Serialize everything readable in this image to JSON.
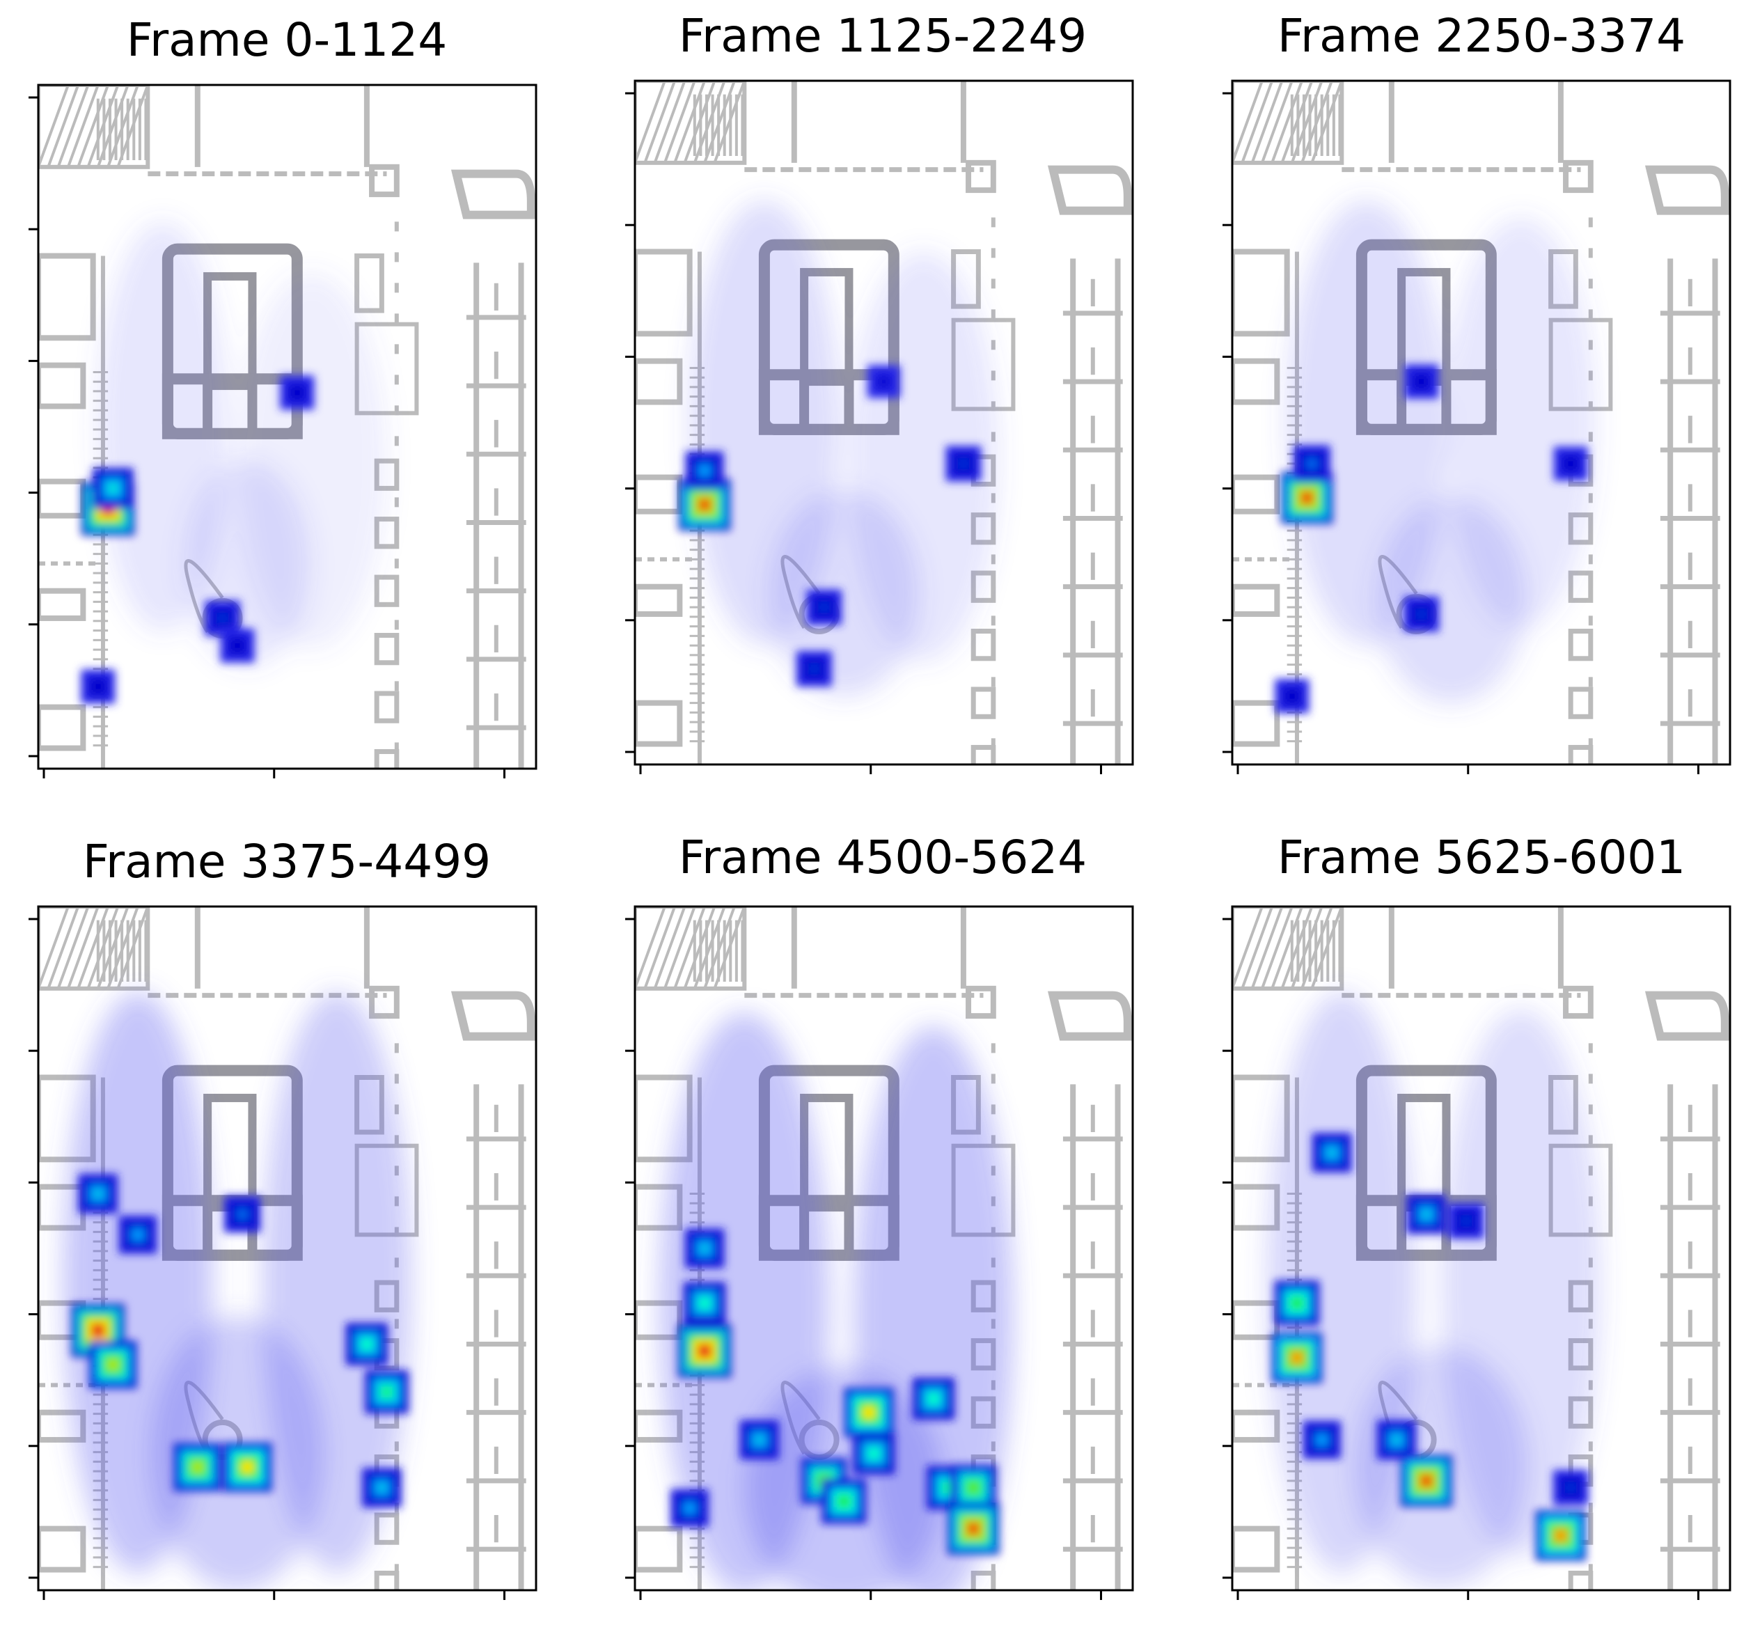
{
  "figure": {
    "background": "#ffffff"
  },
  "chart_data": [
    {
      "type": "heatmap",
      "title": "Frame 0-1124",
      "frame_range": [
        0,
        1124
      ],
      "xlabel": "",
      "ylabel": "",
      "x_tick_count": 3,
      "y_tick_count": 6,
      "background": "floor plan",
      "hotspots": [
        {
          "x": 0.14,
          "y": 0.62,
          "intensity": 1.0
        },
        {
          "x": 0.15,
          "y": 0.59,
          "intensity": 0.55
        },
        {
          "x": 0.37,
          "y": 0.78,
          "intensity": 0.35
        },
        {
          "x": 0.4,
          "y": 0.82,
          "intensity": 0.3
        },
        {
          "x": 0.52,
          "y": 0.45,
          "intensity": 0.3
        },
        {
          "x": 0.12,
          "y": 0.88,
          "intensity": 0.3
        }
      ],
      "diffuse": [
        {
          "x": 0.25,
          "y": 0.5,
          "w": 0.26,
          "h": 0.6,
          "intensity": 0.15
        },
        {
          "x": 0.55,
          "y": 0.55,
          "w": 0.3,
          "h": 0.55,
          "intensity": 0.1
        },
        {
          "x": 0.42,
          "y": 0.7,
          "w": 0.25,
          "h": 0.3,
          "intensity": 0.15
        }
      ]
    },
    {
      "type": "heatmap",
      "title": "Frame 1125-2249",
      "frame_range": [
        1125,
        2249
      ],
      "xlabel": "",
      "ylabel": "",
      "x_tick_count": 3,
      "y_tick_count": 6,
      "background": "floor plan",
      "hotspots": [
        {
          "x": 0.14,
          "y": 0.62,
          "intensity": 0.95
        },
        {
          "x": 0.14,
          "y": 0.57,
          "intensity": 0.45
        },
        {
          "x": 0.38,
          "y": 0.77,
          "intensity": 0.35
        },
        {
          "x": 0.36,
          "y": 0.86,
          "intensity": 0.35
        },
        {
          "x": 0.66,
          "y": 0.56,
          "intensity": 0.35
        },
        {
          "x": 0.5,
          "y": 0.44,
          "intensity": 0.25
        }
      ],
      "diffuse": [
        {
          "x": 0.26,
          "y": 0.5,
          "w": 0.3,
          "h": 0.65,
          "intensity": 0.2
        },
        {
          "x": 0.58,
          "y": 0.55,
          "w": 0.3,
          "h": 0.6,
          "intensity": 0.15
        },
        {
          "x": 0.42,
          "y": 0.75,
          "w": 0.3,
          "h": 0.3,
          "intensity": 0.2
        }
      ]
    },
    {
      "type": "heatmap",
      "title": "Frame 2250-3374",
      "frame_range": [
        2250,
        3374
      ],
      "xlabel": "",
      "ylabel": "",
      "x_tick_count": 3,
      "y_tick_count": 6,
      "background": "floor plan",
      "hotspots": [
        {
          "x": 0.15,
          "y": 0.61,
          "intensity": 0.95
        },
        {
          "x": 0.16,
          "y": 0.56,
          "intensity": 0.4
        },
        {
          "x": 0.38,
          "y": 0.78,
          "intensity": 0.35
        },
        {
          "x": 0.12,
          "y": 0.9,
          "intensity": 0.3
        },
        {
          "x": 0.38,
          "y": 0.44,
          "intensity": 0.3
        },
        {
          "x": 0.68,
          "y": 0.56,
          "intensity": 0.3
        }
      ],
      "diffuse": [
        {
          "x": 0.27,
          "y": 0.5,
          "w": 0.32,
          "h": 0.65,
          "intensity": 0.2
        },
        {
          "x": 0.58,
          "y": 0.5,
          "w": 0.3,
          "h": 0.6,
          "intensity": 0.15
        },
        {
          "x": 0.44,
          "y": 0.76,
          "w": 0.3,
          "h": 0.3,
          "intensity": 0.2
        }
      ]
    },
    {
      "type": "heatmap",
      "title": "Frame 3375-4499",
      "frame_range": [
        3375,
        4499
      ],
      "xlabel": "",
      "ylabel": "",
      "x_tick_count": 3,
      "y_tick_count": 6,
      "background": "floor plan",
      "hotspots": [
        {
          "x": 0.12,
          "y": 0.62,
          "intensity": 1.0
        },
        {
          "x": 0.15,
          "y": 0.67,
          "intensity": 0.8
        },
        {
          "x": 0.12,
          "y": 0.42,
          "intensity": 0.5
        },
        {
          "x": 0.32,
          "y": 0.82,
          "intensity": 0.8
        },
        {
          "x": 0.42,
          "y": 0.82,
          "intensity": 0.85
        },
        {
          "x": 0.66,
          "y": 0.64,
          "intensity": 0.6
        },
        {
          "x": 0.7,
          "y": 0.71,
          "intensity": 0.65
        },
        {
          "x": 0.69,
          "y": 0.85,
          "intensity": 0.5
        },
        {
          "x": 0.41,
          "y": 0.45,
          "intensity": 0.4
        },
        {
          "x": 0.2,
          "y": 0.48,
          "intensity": 0.45
        }
      ],
      "diffuse": [
        {
          "x": 0.2,
          "y": 0.55,
          "w": 0.3,
          "h": 0.85,
          "intensity": 0.35
        },
        {
          "x": 0.6,
          "y": 0.55,
          "w": 0.3,
          "h": 0.85,
          "intensity": 0.3
        },
        {
          "x": 0.4,
          "y": 0.8,
          "w": 0.35,
          "h": 0.4,
          "intensity": 0.3
        }
      ]
    },
    {
      "type": "heatmap",
      "title": "Frame 4500-5624",
      "frame_range": [
        4500,
        5624
      ],
      "xlabel": "",
      "ylabel": "",
      "x_tick_count": 3,
      "y_tick_count": 6,
      "background": "floor plan",
      "hotspots": [
        {
          "x": 0.14,
          "y": 0.65,
          "intensity": 1.0
        },
        {
          "x": 0.14,
          "y": 0.58,
          "intensity": 0.6
        },
        {
          "x": 0.14,
          "y": 0.5,
          "intensity": 0.5
        },
        {
          "x": 0.38,
          "y": 0.84,
          "intensity": 0.75
        },
        {
          "x": 0.42,
          "y": 0.87,
          "intensity": 0.7
        },
        {
          "x": 0.48,
          "y": 0.8,
          "intensity": 0.6
        },
        {
          "x": 0.47,
          "y": 0.74,
          "intensity": 0.85
        },
        {
          "x": 0.6,
          "y": 0.72,
          "intensity": 0.6
        },
        {
          "x": 0.63,
          "y": 0.85,
          "intensity": 0.65
        },
        {
          "x": 0.68,
          "y": 0.85,
          "intensity": 0.75
        },
        {
          "x": 0.68,
          "y": 0.91,
          "intensity": 0.95
        },
        {
          "x": 0.25,
          "y": 0.78,
          "intensity": 0.5
        },
        {
          "x": 0.11,
          "y": 0.88,
          "intensity": 0.45
        }
      ],
      "diffuse": [
        {
          "x": 0.22,
          "y": 0.58,
          "w": 0.34,
          "h": 0.85,
          "intensity": 0.35
        },
        {
          "x": 0.6,
          "y": 0.6,
          "w": 0.32,
          "h": 0.85,
          "intensity": 0.35
        },
        {
          "x": 0.42,
          "y": 0.85,
          "w": 0.4,
          "h": 0.35,
          "intensity": 0.35
        }
      ]
    },
    {
      "type": "heatmap",
      "title": "Frame 5625-6001",
      "frame_range": [
        5625,
        6001
      ],
      "xlabel": "",
      "ylabel": "",
      "x_tick_count": 3,
      "y_tick_count": 6,
      "background": "floor plan",
      "hotspots": [
        {
          "x": 0.13,
          "y": 0.58,
          "intensity": 0.7
        },
        {
          "x": 0.13,
          "y": 0.66,
          "intensity": 0.9
        },
        {
          "x": 0.2,
          "y": 0.36,
          "intensity": 0.5
        },
        {
          "x": 0.39,
          "y": 0.84,
          "intensity": 0.95
        },
        {
          "x": 0.33,
          "y": 0.78,
          "intensity": 0.5
        },
        {
          "x": 0.18,
          "y": 0.78,
          "intensity": 0.45
        },
        {
          "x": 0.66,
          "y": 0.92,
          "intensity": 0.9
        },
        {
          "x": 0.39,
          "y": 0.45,
          "intensity": 0.5
        },
        {
          "x": 0.47,
          "y": 0.46,
          "intensity": 0.35
        },
        {
          "x": 0.68,
          "y": 0.85,
          "intensity": 0.35
        }
      ],
      "diffuse": [
        {
          "x": 0.22,
          "y": 0.55,
          "w": 0.3,
          "h": 0.85,
          "intensity": 0.25
        },
        {
          "x": 0.58,
          "y": 0.55,
          "w": 0.32,
          "h": 0.8,
          "intensity": 0.2
        },
        {
          "x": 0.42,
          "y": 0.82,
          "w": 0.35,
          "h": 0.35,
          "intensity": 0.25
        }
      ]
    }
  ]
}
